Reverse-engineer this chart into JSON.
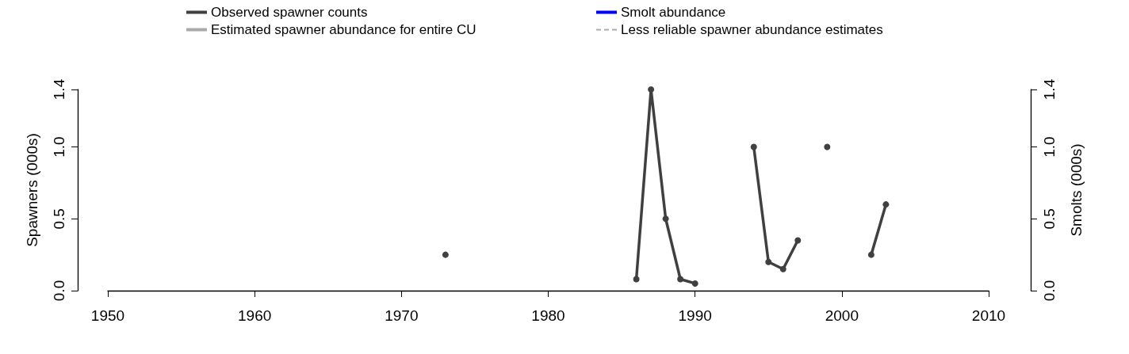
{
  "chart_data": {
    "type": "line",
    "xlabel": null,
    "ylabel": "Spawners (000s)",
    "y2label": "Smolts (000s)",
    "xlim": [
      1950,
      2010
    ],
    "xticks": [
      1950,
      1960,
      1970,
      1980,
      1990,
      2000,
      2010
    ],
    "ylim": [
      0,
      1.4
    ],
    "yticks": [
      {
        "value": 0,
        "label": "0.0"
      },
      0.5,
      {
        "value": 1,
        "label": "1.0"
      },
      1.4
    ],
    "y2lim": [
      0,
      1.4
    ],
    "y2ticks": [
      {
        "value": 0,
        "label": "0.0"
      },
      0.5,
      {
        "value": 1,
        "label": "1.0"
      },
      1.4
    ],
    "grid": false,
    "legend": "top",
    "marker": "circle",
    "series": [
      {
        "name": "Observed spawner counts",
        "color": "#404040",
        "x": [
          1973,
          1980,
          1986,
          1987,
          1988,
          1989,
          1990,
          1992,
          1994,
          1995,
          1996,
          1997,
          1998,
          1999,
          2000,
          2002,
          2003
        ],
        "values": [
          0.25,
          null,
          0.08,
          1.4,
          0.5,
          0.08,
          0.05,
          null,
          1.0,
          0.2,
          0.15,
          0.35,
          null,
          1.0,
          null,
          0.25,
          0.6
        ]
      },
      {
        "name": "Smolt abundance",
        "color": "#0000ff"
      },
      {
        "name": "Estimated spawner abundance for entire CU",
        "color": "#aaaaaa"
      },
      {
        "name": "Less reliable spawner abundance estimates",
        "color": "#aaaaaa",
        "line_style": "dashed"
      }
    ]
  }
}
